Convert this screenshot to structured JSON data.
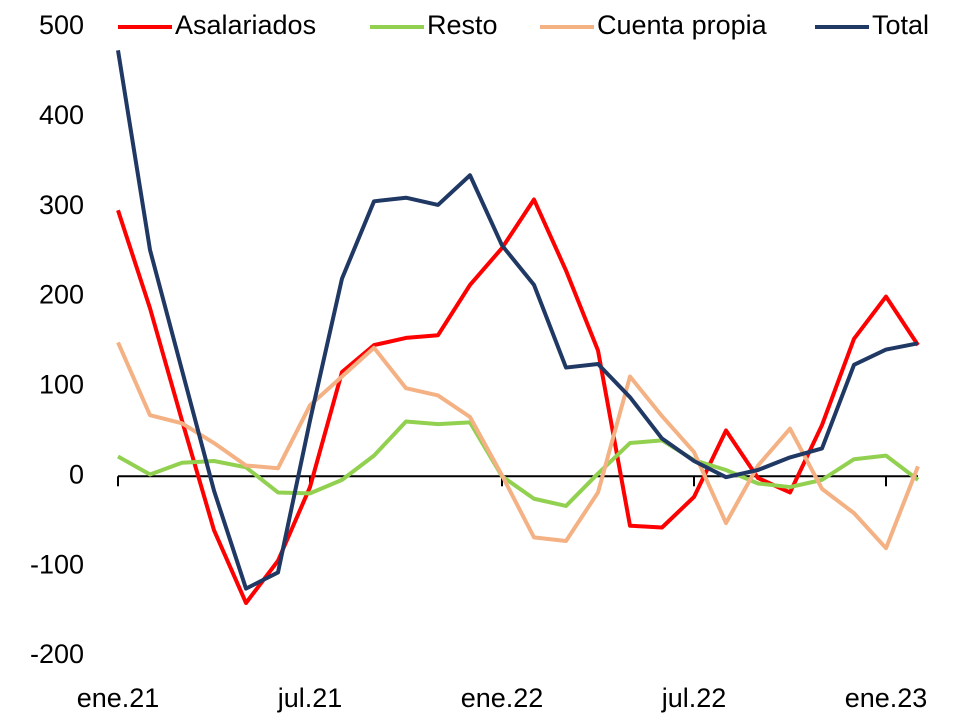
{
  "chart_data": {
    "type": "line",
    "categories": [
      "ene.21",
      null,
      null,
      null,
      null,
      null,
      "jul.21",
      null,
      null,
      null,
      null,
      null,
      "ene.22",
      null,
      null,
      null,
      null,
      null,
      "jul.22",
      null,
      null,
      null,
      null,
      null,
      "ene.23",
      null
    ],
    "series": [
      {
        "name": "Asalariados",
        "color": "#ff0000",
        "values": [
          296,
          187,
          62,
          -60,
          -141,
          -94,
          -12,
          116,
          146,
          154,
          157,
          213,
          254,
          308,
          229,
          140,
          -55,
          -57,
          -23,
          51,
          -2,
          -18,
          57,
          153,
          200,
          146
        ]
      },
      {
        "name": "Resto",
        "color": "#92d050",
        "values": [
          22,
          2,
          15,
          17,
          10,
          -18,
          -19,
          -4,
          23,
          61,
          58,
          60,
          0,
          -25,
          -33,
          3,
          37,
          40,
          18,
          7,
          -8,
          -12,
          -4,
          19,
          23,
          -4
        ]
      },
      {
        "name": "Cuenta propia",
        "color": "#f4b183",
        "values": [
          149,
          68,
          59,
          37,
          12,
          9,
          79,
          111,
          143,
          98,
          90,
          66,
          1,
          -68,
          -72,
          -18,
          111,
          67,
          27,
          -52,
          12,
          53,
          -14,
          -41,
          -80,
          11
        ]
      },
      {
        "name": "Total",
        "color": "#203864",
        "values": [
          474,
          252,
          118,
          -16,
          -125,
          -107,
          62,
          220,
          306,
          310,
          302,
          335,
          257,
          213,
          121,
          125,
          88,
          42,
          17,
          -1,
          7,
          21,
          31,
          124,
          141,
          148
        ]
      }
    ],
    "ylim": [
      -200,
      500
    ],
    "yticks": [
      -200,
      -100,
      0,
      100,
      200,
      300,
      400,
      500
    ],
    "legend": "top",
    "grid": false
  }
}
